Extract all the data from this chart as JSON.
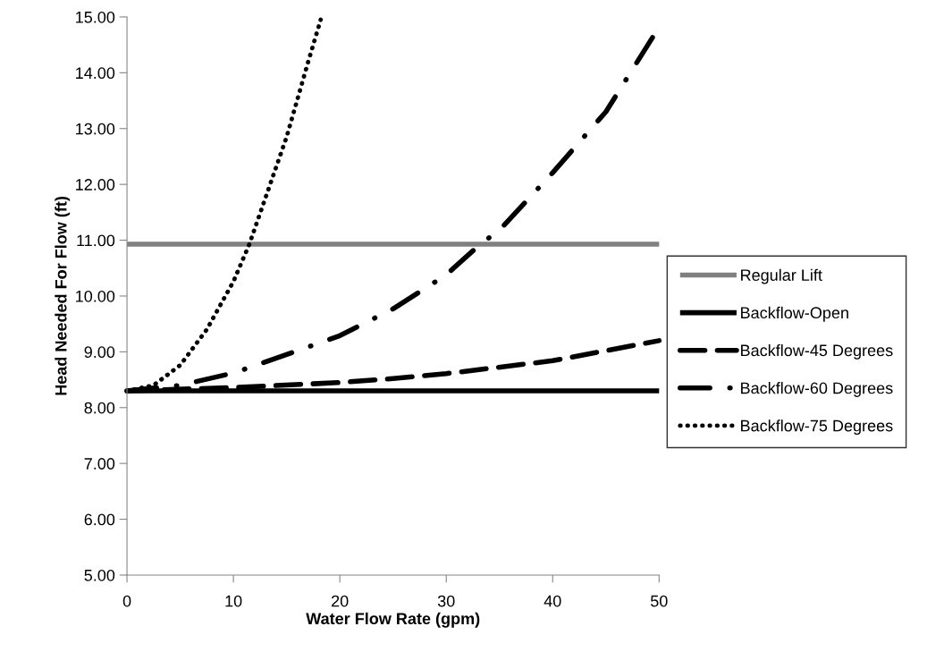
{
  "chart_data": {
    "type": "line",
    "xlabel": "Water Flow Rate (gpm)",
    "ylabel": "Head Needed For Flow (ft)",
    "xlim": [
      0,
      50
    ],
    "xticks": [
      0,
      10,
      20,
      30,
      40,
      50
    ],
    "ylim": [
      5,
      15
    ],
    "yticks": [
      {
        "value": 5,
        "label": "5.00"
      },
      {
        "value": 6,
        "label": "6.00"
      },
      {
        "value": 7,
        "label": "7.00"
      },
      {
        "value": 8,
        "label": "8.00"
      },
      {
        "value": 9,
        "label": "9.00"
      },
      {
        "value": 10,
        "label": "10.00"
      },
      {
        "value": 11,
        "label": "11.00"
      },
      {
        "value": 12,
        "label": "12.00"
      },
      {
        "value": 13,
        "label": "13.00"
      },
      {
        "value": 14,
        "label": "14.00"
      },
      {
        "value": 15,
        "label": "15.00"
      }
    ],
    "grid": false,
    "legend": "right",
    "marker": "none",
    "series": [
      {
        "name": "Regular Lift",
        "color": "#808080",
        "line_style": "solid",
        "x": [
          0,
          50
        ],
        "values": [
          10.93,
          10.93
        ]
      },
      {
        "name": "Backflow-Open",
        "color": "#000000",
        "line_style": "solid",
        "x": [
          0,
          50
        ],
        "values": [
          8.3,
          8.3
        ]
      },
      {
        "name": "Backflow-45 Degrees",
        "color": "#000000",
        "line_style": "dashed",
        "x": [
          0,
          10,
          20,
          25,
          30,
          40,
          50
        ],
        "values": [
          8.3,
          8.36,
          8.45,
          8.52,
          8.61,
          8.84,
          9.2
        ]
      },
      {
        "name": "Backflow-60 Degrees",
        "color": "#000000",
        "line_style": "dashdot",
        "x": [
          0,
          5,
          10,
          15,
          20,
          25,
          30,
          33.2,
          35,
          40,
          45,
          50
        ],
        "values": [
          8.3,
          8.4,
          8.62,
          8.95,
          9.29,
          9.77,
          10.38,
          10.93,
          11.18,
          12.21,
          13.3,
          14.82
        ]
      },
      {
        "name": "Backflow-75 Degrees",
        "color": "#000000",
        "line_style": "dotted",
        "x": [
          0,
          2.5,
          5,
          7.5,
          10,
          11.5,
          15,
          17,
          18.2
        ],
        "values": [
          8.3,
          8.4,
          8.76,
          9.4,
          10.26,
          10.93,
          12.85,
          14.18,
          14.95
        ]
      }
    ]
  }
}
